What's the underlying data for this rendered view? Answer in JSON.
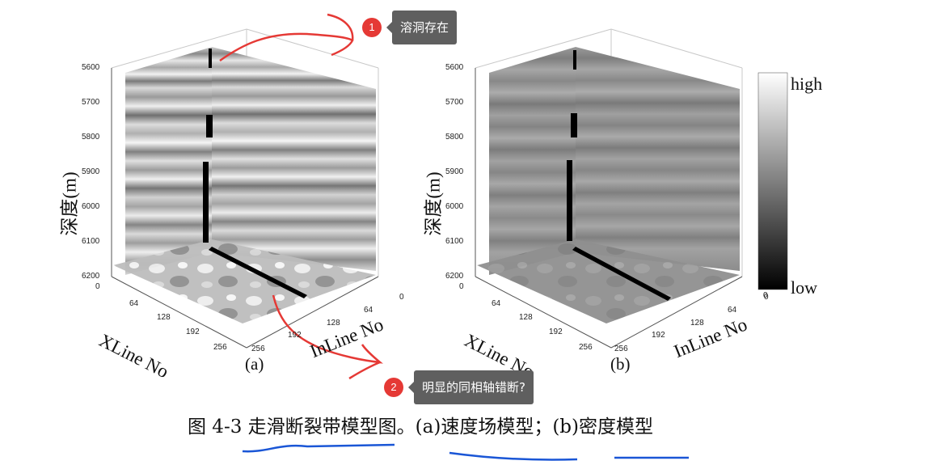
{
  "annotations": {
    "badge1": "1",
    "tooltip1": "溶洞存在",
    "badge2": "2",
    "tooltip2": "明显的同相轴错断?"
  },
  "panel_a": {
    "label": "(a)",
    "depth_ticks": [
      "5600",
      "5700",
      "5800",
      "5900",
      "6000",
      "6100",
      "6200"
    ],
    "depth_title": "深度(m)",
    "xline_ticks": [
      "0",
      "64",
      "128",
      "192",
      "256"
    ],
    "xline_title": "XLine No",
    "inline_ticks": [
      "0",
      "64",
      "128",
      "192",
      "256"
    ],
    "inline_title": "InLine No"
  },
  "panel_b": {
    "label": "(b)",
    "depth_ticks": [
      "5600",
      "5700",
      "5800",
      "5900",
      "6000",
      "6100",
      "6200"
    ],
    "depth_title": "深度(m)",
    "xline_ticks": [
      "0",
      "64",
      "128",
      "192",
      "256"
    ],
    "xline_title": "XLine No",
    "inline_ticks": [
      "0",
      "64",
      "128",
      "192",
      "256"
    ],
    "inline_title": "InLine No"
  },
  "colorbar": {
    "high": "high",
    "low": "low",
    "zero": "0"
  },
  "caption": "图 4-3 走滑断裂带模型图。(a)速度场模型；(b)密度模型",
  "colors": {
    "annotation_red": "#e53935",
    "underline_blue": "#1a56d6",
    "tooltip_bg": "#5f5f5f"
  }
}
